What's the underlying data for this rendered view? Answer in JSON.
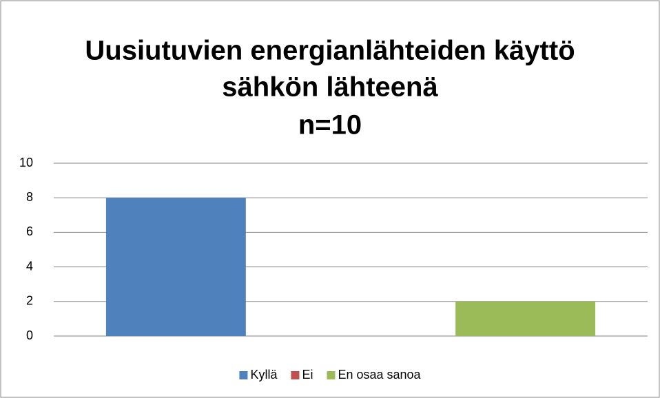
{
  "chart_data": {
    "type": "bar",
    "title": [
      "Uusiutuvien energianlähteiden käyttö",
      "sähkön lähteenä",
      "n=10"
    ],
    "categories": [
      null
    ],
    "series": [
      {
        "name": "Kyllä",
        "color": "#4f81bd",
        "values": [
          8
        ]
      },
      {
        "name": "Ei",
        "color": "#c0504d",
        "values": [
          0
        ]
      },
      {
        "name": "En osaa sanoa",
        "color": "#9bbb59",
        "values": [
          2
        ]
      }
    ],
    "ylim": [
      0,
      10
    ],
    "yticks": [
      0,
      2,
      4,
      6,
      8,
      10
    ],
    "grid": true,
    "legend": "bottom"
  }
}
